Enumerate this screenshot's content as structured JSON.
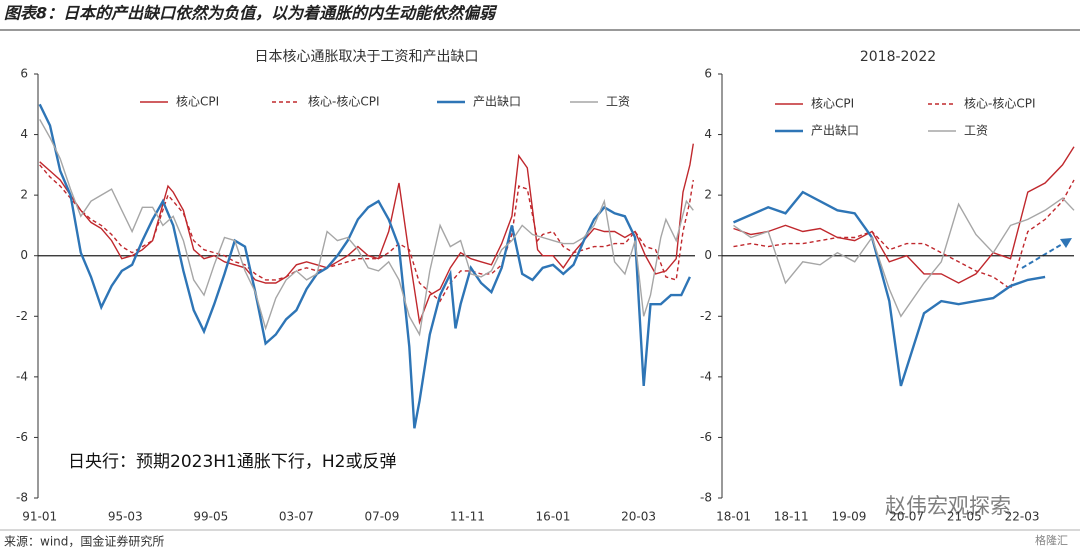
{
  "header": {
    "title": "图表8：日本的产出缺口依然为负值，以为着通胀的内生动能依然偏弱"
  },
  "footer": {
    "source": "来源：wind，国金证券研究所"
  },
  "watermark": [
    "赵伟宏观探索",
    "格隆汇"
  ],
  "chart_data": [
    {
      "type": "line",
      "title": "日本核心通胀取决于工资和产出缺口",
      "annotation": "日央行：预期2023H1通胀下行，H2或反弹",
      "xlim": [
        "90-12",
        "22-12"
      ],
      "xticks": [
        "91-01",
        "95-03",
        "99-05",
        "03-07",
        "07-09",
        "11-11",
        "16-01",
        "20-03"
      ],
      "ylim": [
        -8,
        6
      ],
      "yticks": [
        6,
        4,
        2,
        0,
        -2,
        -4,
        -6,
        -8
      ],
      "grid": false,
      "series": [
        {
          "name": "核心CPI",
          "color": "#c0282d",
          "style": "solid",
          "x": [
            "91-01",
            "91-07",
            "92-01",
            "92-07",
            "93-01",
            "93-07",
            "94-01",
            "94-07",
            "95-01",
            "95-07",
            "96-01",
            "96-07",
            "97-04",
            "97-07",
            "98-01",
            "98-07",
            "99-01",
            "99-07",
            "00-01",
            "00-07",
            "01-01",
            "01-07",
            "02-01",
            "02-07",
            "03-01",
            "03-07",
            "04-01",
            "04-07",
            "05-01",
            "05-07",
            "06-01",
            "06-07",
            "07-01",
            "07-07",
            "08-01",
            "08-07",
            "09-01",
            "09-07",
            "10-01",
            "10-07",
            "11-01",
            "11-07",
            "12-01",
            "12-07",
            "13-01",
            "13-07",
            "14-01",
            "14-05",
            "14-10",
            "15-04",
            "15-07",
            "16-01",
            "16-07",
            "17-01",
            "17-07",
            "18-01",
            "18-07",
            "19-01",
            "19-07",
            "20-01",
            "20-07",
            "21-01",
            "21-07",
            "22-01",
            "22-05",
            "22-09",
            "22-11"
          ],
          "values": [
            3.1,
            2.8,
            2.5,
            2.0,
            1.5,
            1.1,
            0.9,
            0.5,
            -0.1,
            0.0,
            0.2,
            0.5,
            2.3,
            2.1,
            1.5,
            0.2,
            -0.1,
            0.0,
            -0.2,
            -0.3,
            -0.4,
            -0.8,
            -0.9,
            -0.9,
            -0.7,
            -0.3,
            -0.2,
            -0.3,
            -0.4,
            -0.2,
            0.0,
            0.3,
            0.0,
            -0.1,
            0.8,
            2.4,
            0.0,
            -2.2,
            -1.3,
            -1.1,
            -0.4,
            0.1,
            -0.1,
            -0.2,
            -0.3,
            0.4,
            1.3,
            3.3,
            2.9,
            0.2,
            0.0,
            0.0,
            -0.4,
            0.1,
            0.5,
            0.9,
            0.8,
            0.8,
            0.6,
            0.8,
            0.0,
            -0.6,
            -0.5,
            -0.1,
            2.1,
            3.0,
            3.7
          ]
        },
        {
          "name": "核心-核心CPI",
          "color": "#c0282d",
          "style": "dashed",
          "x": [
            "91-01",
            "91-07",
            "92-01",
            "92-07",
            "93-01",
            "93-07",
            "94-01",
            "94-07",
            "95-01",
            "95-07",
            "96-01",
            "96-07",
            "97-04",
            "97-07",
            "98-01",
            "98-07",
            "99-01",
            "99-07",
            "00-01",
            "00-07",
            "01-01",
            "01-07",
            "02-01",
            "02-07",
            "03-01",
            "03-07",
            "04-01",
            "04-07",
            "05-01",
            "05-07",
            "06-01",
            "06-07",
            "07-01",
            "07-07",
            "08-01",
            "08-07",
            "09-01",
            "09-07",
            "10-01",
            "10-07",
            "11-01",
            "11-07",
            "12-01",
            "12-07",
            "13-01",
            "13-07",
            "14-01",
            "14-05",
            "14-10",
            "15-04",
            "15-07",
            "16-01",
            "16-07",
            "17-01",
            "17-07",
            "18-01",
            "18-07",
            "19-01",
            "19-07",
            "20-01",
            "20-07",
            "21-01",
            "21-07",
            "22-01",
            "22-05",
            "22-09",
            "22-11"
          ],
          "values": [
            3.0,
            2.6,
            2.3,
            1.9,
            1.5,
            1.2,
            1.0,
            0.7,
            0.3,
            0.1,
            0.3,
            0.5,
            2.0,
            1.8,
            1.4,
            0.5,
            0.2,
            0.1,
            0.0,
            -0.2,
            -0.3,
            -0.6,
            -0.8,
            -0.8,
            -0.7,
            -0.5,
            -0.4,
            -0.5,
            -0.4,
            -0.3,
            -0.2,
            -0.1,
            -0.1,
            -0.1,
            0.1,
            0.4,
            0.2,
            -0.9,
            -1.2,
            -1.5,
            -0.9,
            -0.5,
            -0.5,
            -0.6,
            -0.6,
            -0.3,
            0.7,
            2.3,
            2.2,
            0.5,
            0.7,
            0.8,
            0.3,
            0.1,
            0.2,
            0.3,
            0.3,
            0.4,
            0.4,
            0.8,
            0.3,
            0.2,
            -0.7,
            -0.8,
            0.8,
            1.8,
            2.5
          ]
        },
        {
          "name": "产出缺口",
          "color": "#2e75b6",
          "style": "solid",
          "x": [
            "91-01",
            "91-07",
            "92-01",
            "92-07",
            "93-01",
            "93-07",
            "94-01",
            "94-07",
            "95-01",
            "95-07",
            "96-01",
            "96-07",
            "97-01",
            "97-07",
            "98-01",
            "98-07",
            "99-01",
            "99-07",
            "00-01",
            "00-07",
            "01-01",
            "01-07",
            "02-01",
            "02-07",
            "03-01",
            "03-07",
            "04-01",
            "04-07",
            "05-01",
            "05-07",
            "06-01",
            "06-07",
            "07-01",
            "07-07",
            "08-01",
            "08-07",
            "09-01",
            "09-04",
            "09-07",
            "10-01",
            "10-07",
            "11-01",
            "11-04",
            "11-07",
            "12-01",
            "12-07",
            "13-01",
            "13-07",
            "14-01",
            "14-07",
            "15-01",
            "15-07",
            "16-01",
            "16-07",
            "17-01",
            "17-07",
            "18-01",
            "18-07",
            "19-01",
            "19-07",
            "20-01",
            "20-06",
            "20-10",
            "21-04",
            "21-10",
            "22-04",
            "22-09"
          ],
          "values": [
            5.0,
            4.3,
            2.8,
            2.0,
            0.1,
            -0.7,
            -1.7,
            -1.0,
            -0.5,
            -0.3,
            0.5,
            1.2,
            1.8,
            1.0,
            -0.5,
            -1.8,
            -2.5,
            -1.6,
            -0.6,
            0.5,
            0.3,
            -1.2,
            -2.9,
            -2.6,
            -2.1,
            -1.8,
            -1.1,
            -0.6,
            -0.4,
            0.0,
            0.5,
            1.2,
            1.6,
            1.8,
            1.2,
            0.3,
            -3.0,
            -5.7,
            -4.8,
            -2.6,
            -1.3,
            -0.6,
            -2.4,
            -1.6,
            -0.4,
            -0.9,
            -1.2,
            -0.4,
            1.0,
            -0.6,
            -0.8,
            -0.4,
            -0.3,
            -0.6,
            -0.3,
            0.5,
            1.2,
            1.6,
            1.4,
            1.3,
            0.6,
            -4.3,
            -1.6,
            -1.6,
            -1.3,
            -1.3,
            -0.7
          ]
        },
        {
          "name": "工资",
          "color": "#a6a6a6",
          "style": "solid",
          "x": [
            "91-01",
            "91-07",
            "92-01",
            "92-07",
            "93-01",
            "93-07",
            "94-01",
            "94-07",
            "95-01",
            "95-07",
            "96-01",
            "96-07",
            "97-01",
            "97-07",
            "98-01",
            "98-07",
            "99-01",
            "99-07",
            "00-01",
            "00-07",
            "01-01",
            "01-07",
            "02-01",
            "02-07",
            "03-01",
            "03-07",
            "04-01",
            "04-07",
            "05-01",
            "05-07",
            "06-01",
            "06-07",
            "07-01",
            "07-07",
            "08-01",
            "08-07",
            "09-01",
            "09-07",
            "10-01",
            "10-07",
            "11-01",
            "11-07",
            "12-01",
            "12-07",
            "13-01",
            "13-07",
            "14-01",
            "14-07",
            "15-01",
            "15-07",
            "16-01",
            "16-07",
            "17-01",
            "17-07",
            "18-01",
            "18-07",
            "19-01",
            "19-07",
            "20-01",
            "20-06",
            "20-10",
            "21-04",
            "21-07",
            "22-01",
            "22-07",
            "22-11"
          ],
          "values": [
            4.5,
            3.9,
            3.2,
            2.2,
            1.3,
            1.8,
            2.0,
            2.2,
            1.5,
            0.8,
            1.6,
            1.6,
            1.0,
            1.3,
            0.5,
            -0.8,
            -1.3,
            -0.3,
            0.6,
            0.5,
            -0.5,
            -1.2,
            -2.4,
            -1.4,
            -0.8,
            -0.5,
            -0.8,
            -0.6,
            0.8,
            0.5,
            0.6,
            0.2,
            -0.4,
            -0.5,
            -0.2,
            -0.8,
            -2.0,
            -2.6,
            -0.5,
            1.0,
            0.3,
            0.5,
            -0.6,
            -0.7,
            -0.5,
            0.2,
            0.5,
            1.0,
            0.7,
            0.6,
            0.5,
            0.4,
            0.4,
            0.6,
            1.0,
            1.8,
            -0.2,
            -0.6,
            0.5,
            -2.0,
            -1.3,
            0.6,
            1.2,
            0.5,
            1.8,
            1.5
          ]
        }
      ]
    },
    {
      "type": "line",
      "title": "2018-2022",
      "xlim": [
        "17-11",
        "22-12"
      ],
      "xticks": [
        "18-01",
        "18-11",
        "19-09",
        "20-07",
        "21-05",
        "22-03"
      ],
      "ylim": [
        -8,
        6
      ],
      "yticks": [
        6,
        4,
        2,
        0,
        -2,
        -4,
        -6,
        -8
      ],
      "grid": false,
      "series": [
        {
          "name": "核心CPI",
          "color": "#c0282d",
          "style": "solid",
          "x": [
            "18-01",
            "18-04",
            "18-07",
            "18-10",
            "19-01",
            "19-04",
            "19-07",
            "19-10",
            "20-01",
            "20-04",
            "20-07",
            "20-10",
            "21-01",
            "21-04",
            "21-07",
            "21-10",
            "22-01",
            "22-04",
            "22-07",
            "22-10",
            "22-12"
          ],
          "values": [
            0.9,
            0.7,
            0.8,
            1.0,
            0.8,
            0.9,
            0.6,
            0.5,
            0.8,
            -0.2,
            0.0,
            -0.6,
            -0.6,
            -0.9,
            -0.6,
            0.1,
            -0.1,
            2.1,
            2.4,
            3.0,
            3.6
          ]
        },
        {
          "name": "核心-核心CPI",
          "color": "#c0282d",
          "style": "dashed",
          "x": [
            "18-01",
            "18-04",
            "18-07",
            "18-10",
            "19-01",
            "19-04",
            "19-07",
            "19-10",
            "20-01",
            "20-04",
            "20-07",
            "20-10",
            "21-01",
            "21-04",
            "21-07",
            "21-10",
            "22-01",
            "22-04",
            "22-07",
            "22-10",
            "22-12"
          ],
          "values": [
            0.3,
            0.4,
            0.3,
            0.4,
            0.4,
            0.5,
            0.6,
            0.6,
            0.8,
            0.2,
            0.4,
            0.4,
            0.1,
            -0.2,
            -0.5,
            -0.7,
            -1.1,
            0.8,
            1.2,
            1.8,
            2.5
          ]
        },
        {
          "name": "产出缺口",
          "color": "#2e75b6",
          "style": "solid",
          "x": [
            "18-01",
            "18-07",
            "18-10",
            "19-01",
            "19-07",
            "19-10",
            "20-01",
            "20-04",
            "20-06",
            "20-10",
            "21-01",
            "21-04",
            "21-07",
            "21-10",
            "22-01",
            "22-04",
            "22-07"
          ],
          "values": [
            1.1,
            1.6,
            1.4,
            2.1,
            1.5,
            1.4,
            0.6,
            -1.5,
            -4.3,
            -1.9,
            -1.5,
            -1.6,
            -1.5,
            -1.4,
            -1.0,
            -0.8,
            -0.7
          ]
        },
        {
          "name": "工资",
          "color": "#a6a6a6",
          "style": "solid",
          "x": [
            "18-01",
            "18-04",
            "18-07",
            "18-10",
            "19-01",
            "19-04",
            "19-07",
            "19-10",
            "20-01",
            "20-04",
            "20-06",
            "20-10",
            "21-01",
            "21-04",
            "21-07",
            "21-10",
            "22-01",
            "22-04",
            "22-07",
            "22-10",
            "22-12"
          ],
          "values": [
            1.0,
            0.6,
            0.8,
            -0.9,
            -0.2,
            -0.3,
            0.1,
            -0.2,
            0.6,
            -1.1,
            -2.0,
            -0.9,
            -0.2,
            1.7,
            0.7,
            0.1,
            1.0,
            1.2,
            1.5,
            1.9,
            1.5
          ]
        }
      ]
    }
  ]
}
